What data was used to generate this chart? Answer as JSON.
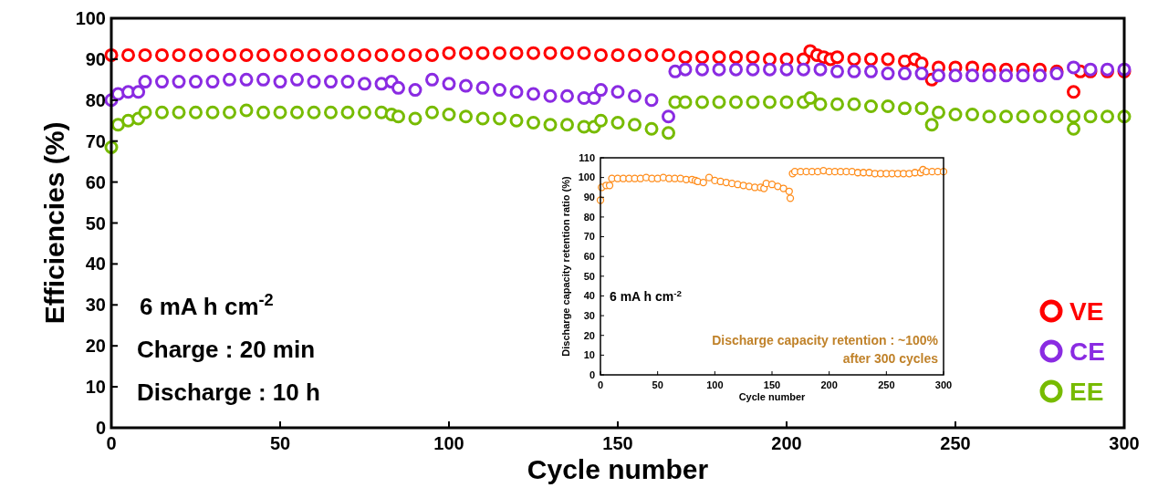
{
  "chart_data": [
    {
      "type": "scatter",
      "xlabel": "Cycle number",
      "ylabel": "Efficiencies (%)",
      "xlim": [
        0,
        300
      ],
      "ylim": [
        0,
        100
      ],
      "xticks": [
        0,
        50,
        100,
        150,
        200,
        250,
        300
      ],
      "yticks": [
        0,
        10,
        20,
        30,
        40,
        50,
        60,
        70,
        80,
        90,
        100
      ],
      "marker": "circle",
      "legend": "bottom right",
      "grid": false,
      "annotations": [
        "6 mA h cm$^{-2}$",
        "Charge : 20 min",
        "Discharge : 10 h"
      ],
      "series": [
        {
          "name": "VE",
          "color": "#ff0000",
          "x": [
            0,
            5,
            10,
            15,
            20,
            25,
            30,
            35,
            40,
            45,
            50,
            55,
            60,
            65,
            70,
            75,
            80,
            85,
            90,
            95,
            100,
            105,
            110,
            115,
            120,
            125,
            130,
            135,
            140,
            145,
            150,
            155,
            160,
            165,
            170,
            175,
            180,
            185,
            190,
            195,
            200,
            205,
            207,
            209,
            211,
            213,
            215,
            220,
            225,
            230,
            235,
            238,
            240,
            243,
            245,
            250,
            255,
            260,
            265,
            270,
            275,
            280,
            285,
            287,
            290,
            295,
            300
          ],
          "values": [
            91,
            91,
            91,
            91,
            91,
            91,
            91,
            91,
            91,
            91,
            91,
            91,
            91,
            91,
            91,
            91,
            91,
            91,
            91,
            91,
            91.5,
            91.5,
            91.5,
            91.5,
            91.5,
            91.5,
            91.5,
            91.5,
            91.5,
            91,
            91,
            91,
            91,
            91,
            90.5,
            90.5,
            90.5,
            90.5,
            90.5,
            90,
            90,
            90,
            92,
            91,
            90.5,
            90,
            90.5,
            90,
            90,
            90,
            89.5,
            90,
            89,
            85,
            88,
            88,
            88,
            87.5,
            87.5,
            87.5,
            87.5,
            87,
            82,
            87,
            87,
            87,
            87
          ]
        },
        {
          "name": "CE",
          "color": "#8a2be2",
          "x": [
            0,
            2,
            5,
            8,
            10,
            15,
            20,
            25,
            30,
            35,
            40,
            45,
            50,
            55,
            60,
            65,
            70,
            75,
            80,
            83,
            85,
            90,
            95,
            100,
            105,
            110,
            115,
            120,
            125,
            130,
            135,
            140,
            143,
            145,
            150,
            155,
            160,
            165,
            167,
            170,
            175,
            180,
            185,
            190,
            195,
            200,
            205,
            210,
            215,
            220,
            225,
            230,
            235,
            240,
            245,
            250,
            255,
            260,
            265,
            270,
            275,
            280,
            285,
            290,
            295,
            300
          ],
          "values": [
            80,
            81.5,
            82,
            82,
            84.5,
            84.5,
            84.5,
            84.5,
            84.5,
            85,
            85,
            85,
            84.5,
            85,
            84.5,
            84.5,
            84.5,
            84,
            84,
            84.5,
            83,
            82.5,
            85,
            84,
            83.5,
            83,
            82.5,
            82,
            81.5,
            81,
            81,
            80.5,
            80.5,
            82.5,
            82,
            81,
            80,
            76,
            87,
            87.5,
            87.5,
            87.5,
            87.5,
            87.5,
            87.5,
            87.5,
            87.5,
            87.5,
            87,
            87,
            87,
            86.5,
            86.5,
            86.5,
            86,
            86,
            86,
            86,
            86,
            86,
            86,
            86.5,
            88,
            87.5,
            87.5,
            87.5
          ]
        },
        {
          "name": "EE",
          "color": "#77bb00",
          "x": [
            0,
            2,
            5,
            8,
            10,
            15,
            20,
            25,
            30,
            35,
            40,
            45,
            50,
            55,
            60,
            65,
            70,
            75,
            80,
            83,
            85,
            90,
            95,
            100,
            105,
            110,
            115,
            120,
            125,
            130,
            135,
            140,
            143,
            145,
            150,
            155,
            160,
            165,
            167,
            170,
            175,
            180,
            185,
            190,
            195,
            200,
            205,
            207,
            210,
            215,
            220,
            225,
            230,
            235,
            240,
            243,
            245,
            250,
            255,
            260,
            265,
            270,
            275,
            280,
            285,
            285,
            290,
            295,
            300
          ],
          "values": [
            68.5,
            74,
            75,
            75.5,
            77,
            77,
            77,
            77,
            77,
            77,
            77.5,
            77,
            77,
            77,
            77,
            77,
            77,
            77,
            77,
            76.5,
            76,
            75.5,
            77,
            76.5,
            76,
            75.5,
            75.5,
            75,
            74.5,
            74,
            74,
            73.5,
            73.5,
            75,
            74.5,
            74,
            73,
            72,
            79.5,
            79.5,
            79.5,
            79.5,
            79.5,
            79.5,
            79.5,
            79.5,
            79.5,
            80.5,
            79,
            79,
            79,
            78.5,
            78.5,
            78,
            78,
            74,
            77,
            76.5,
            76.5,
            76,
            76,
            76,
            76,
            76,
            76,
            73,
            76,
            76,
            76
          ]
        }
      ]
    },
    {
      "type": "scatter",
      "xlabel": "Cycle number",
      "ylabel": "Discharge capacity retention ratio (%)",
      "xlim": [
        0,
        300
      ],
      "ylim": [
        0,
        110
      ],
      "xticks": [
        0,
        50,
        100,
        150,
        200,
        250,
        300
      ],
      "yticks": [
        0,
        10,
        20,
        30,
        40,
        50,
        60,
        70,
        80,
        90,
        100,
        110
      ],
      "marker": "circle",
      "grid": false,
      "annotations": [
        "6 mA h cm$^{-2}$",
        "Discharge capacity retention : ~100%",
        "after 300 cycles"
      ],
      "series": [
        {
          "color": "#ff8c1a",
          "x": [
            0,
            1,
            5,
            8,
            10,
            15,
            20,
            25,
            30,
            35,
            40,
            45,
            50,
            55,
            60,
            65,
            70,
            75,
            80,
            83,
            85,
            90,
            95,
            100,
            105,
            110,
            115,
            120,
            125,
            130,
            135,
            140,
            143,
            145,
            150,
            155,
            160,
            165,
            166,
            168,
            170,
            175,
            180,
            185,
            190,
            195,
            200,
            205,
            210,
            215,
            220,
            225,
            230,
            235,
            240,
            245,
            250,
            255,
            260,
            265,
            270,
            275,
            280,
            282,
            285,
            290,
            295,
            300
          ],
          "values": [
            88.5,
            95,
            96,
            96,
            99.5,
            99.5,
            99.5,
            99.5,
            99.5,
            99.5,
            100,
            99.5,
            99.5,
            100,
            99.5,
            99.5,
            99.5,
            99,
            99,
            98.5,
            98,
            97.5,
            100,
            98.5,
            98,
            97.5,
            97,
            96.5,
            96,
            95.5,
            95,
            95,
            94.5,
            97,
            96.5,
            95.5,
            94.5,
            93,
            89.5,
            102,
            103,
            103,
            103,
            103,
            103,
            103.5,
            103,
            103,
            103,
            103,
            103,
            102.5,
            102.5,
            102.5,
            102,
            102,
            102,
            102,
            102,
            102,
            102,
            102.5,
            102.5,
            104,
            103,
            103,
            103,
            103
          ]
        }
      ]
    }
  ]
}
